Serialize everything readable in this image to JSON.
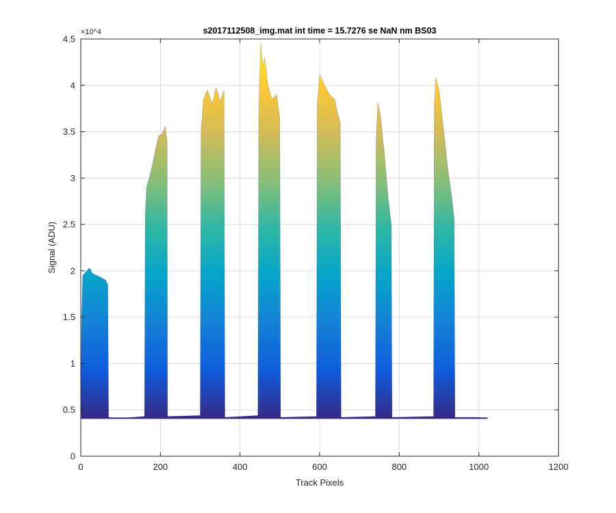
{
  "chart_data": {
    "type": "area",
    "title": "s2017112508_img.mat int time = 15.7276 se  NaN nm BS03",
    "xlabel": "Track Pixels",
    "ylabel": "Signal (ADU)",
    "xlim": [
      0,
      1200
    ],
    "ylim": [
      0,
      45000
    ],
    "y_exponent_label": "×10^4",
    "xticks": [
      0,
      200,
      400,
      600,
      800,
      1000,
      1200
    ],
    "xtick_labels": [
      "0",
      "200",
      "400",
      "600",
      "800",
      "1000",
      "1200"
    ],
    "yticks": [
      0,
      5000,
      10000,
      15000,
      20000,
      25000,
      30000,
      35000,
      40000,
      45000
    ],
    "ytick_labels": [
      "0",
      "0.5",
      "1",
      "1.5",
      "2",
      "2.5",
      "3",
      "3.5",
      "4",
      "4.5"
    ],
    "grid": true,
    "colormap": "parula",
    "colormap_stops": [
      "#352a87",
      "#0f5cdd",
      "#1481d6",
      "#06a4ca",
      "#2eb7a4",
      "#87bf77",
      "#d1bb59",
      "#fec832",
      "#f9fb0e"
    ],
    "baseline": 4100,
    "profile": [
      [
        0,
        4200
      ],
      [
        2,
        15000
      ],
      [
        5,
        19500
      ],
      [
        15,
        20000
      ],
      [
        22,
        20300
      ],
      [
        30,
        19700
      ],
      [
        40,
        19500
      ],
      [
        50,
        19300
      ],
      [
        62,
        19000
      ],
      [
        68,
        18500
      ],
      [
        70,
        4200
      ],
      [
        100,
        4100
      ],
      [
        160,
        4300
      ],
      [
        162,
        26000
      ],
      [
        165,
        29000
      ],
      [
        175,
        30500
      ],
      [
        185,
        32500
      ],
      [
        195,
        34500
      ],
      [
        205,
        34800
      ],
      [
        212,
        35600
      ],
      [
        217,
        34000
      ],
      [
        218,
        4300
      ],
      [
        300,
        4400
      ],
      [
        302,
        35000
      ],
      [
        308,
        38500
      ],
      [
        318,
        39500
      ],
      [
        330,
        38000
      ],
      [
        340,
        39800
      ],
      [
        350,
        38300
      ],
      [
        360,
        39500
      ],
      [
        362,
        4200
      ],
      [
        445,
        4400
      ],
      [
        447,
        37000
      ],
      [
        452,
        44600
      ],
      [
        458,
        42000
      ],
      [
        462,
        43000
      ],
      [
        470,
        40000
      ],
      [
        480,
        38500
      ],
      [
        492,
        39000
      ],
      [
        500,
        36500
      ],
      [
        502,
        4200
      ],
      [
        592,
        4300
      ],
      [
        594,
        38000
      ],
      [
        600,
        41200
      ],
      [
        612,
        40000
      ],
      [
        625,
        39000
      ],
      [
        638,
        38500
      ],
      [
        645,
        37000
      ],
      [
        652,
        36000
      ],
      [
        654,
        4200
      ],
      [
        740,
        4300
      ],
      [
        742,
        34000
      ],
      [
        746,
        38200
      ],
      [
        752,
        37000
      ],
      [
        762,
        33000
      ],
      [
        772,
        28000
      ],
      [
        780,
        25000
      ],
      [
        782,
        4200
      ],
      [
        886,
        4300
      ],
      [
        888,
        38000
      ],
      [
        892,
        40800
      ],
      [
        900,
        39500
      ],
      [
        912,
        35000
      ],
      [
        922,
        31000
      ],
      [
        932,
        28000
      ],
      [
        938,
        25500
      ],
      [
        940,
        4200
      ],
      [
        1000,
        4200
      ],
      [
        1022,
        4100
      ]
    ]
  }
}
